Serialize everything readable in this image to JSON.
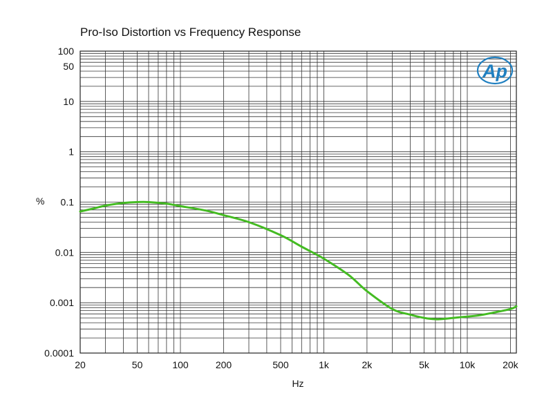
{
  "logo_text": "Ap",
  "colors": {
    "series": "#44bb22",
    "logo": "#1f7fc0",
    "grid": "#333333",
    "background": "#ffffff"
  },
  "chart_data": {
    "type": "line",
    "title": "Pro-Iso Distortion vs Frequency Response",
    "xlabel": "Hz",
    "ylabel": "%",
    "xscale": "log",
    "yscale": "log",
    "xlim": [
      20,
      22000
    ],
    "ylim": [
      0.0001,
      100
    ],
    "grid": true,
    "x_ticks": [
      {
        "value": 20,
        "label": "20"
      },
      {
        "value": 50,
        "label": "50"
      },
      {
        "value": 100,
        "label": "100"
      },
      {
        "value": 200,
        "label": "200"
      },
      {
        "value": 500,
        "label": "500"
      },
      {
        "value": 1000,
        "label": "1k"
      },
      {
        "value": 2000,
        "label": "2k"
      },
      {
        "value": 5000,
        "label": "5k"
      },
      {
        "value": 10000,
        "label": "10k"
      },
      {
        "value": 20000,
        "label": "20k"
      }
    ],
    "y_ticks": [
      {
        "value": 100,
        "label": "100"
      },
      {
        "value": 50,
        "label": "50"
      },
      {
        "value": 10,
        "label": "10"
      },
      {
        "value": 1,
        "label": "1"
      },
      {
        "value": 0.1,
        "label": "0.1"
      },
      {
        "value": 0.01,
        "label": "0.01"
      },
      {
        "value": 0.001,
        "label": "0.001"
      },
      {
        "value": 0.0001,
        "label": "0.0001"
      }
    ],
    "series": [
      {
        "x": [
          20,
          25,
          30,
          40,
          50,
          60,
          80,
          100,
          150,
          200,
          300,
          500,
          700,
          1000,
          1500,
          2000,
          3000,
          4000,
          5000,
          6000,
          7000,
          8000,
          10000,
          12000,
          15000,
          20000,
          22000
        ],
        "y": [
          0.065,
          0.075,
          0.085,
          0.096,
          0.1,
          0.1,
          0.093,
          0.083,
          0.068,
          0.055,
          0.04,
          0.022,
          0.013,
          0.0075,
          0.0035,
          0.0017,
          0.00075,
          0.00058,
          0.0005,
          0.00047,
          0.00048,
          0.0005,
          0.00053,
          0.00056,
          0.00063,
          0.00075,
          0.00085
        ]
      }
    ]
  }
}
